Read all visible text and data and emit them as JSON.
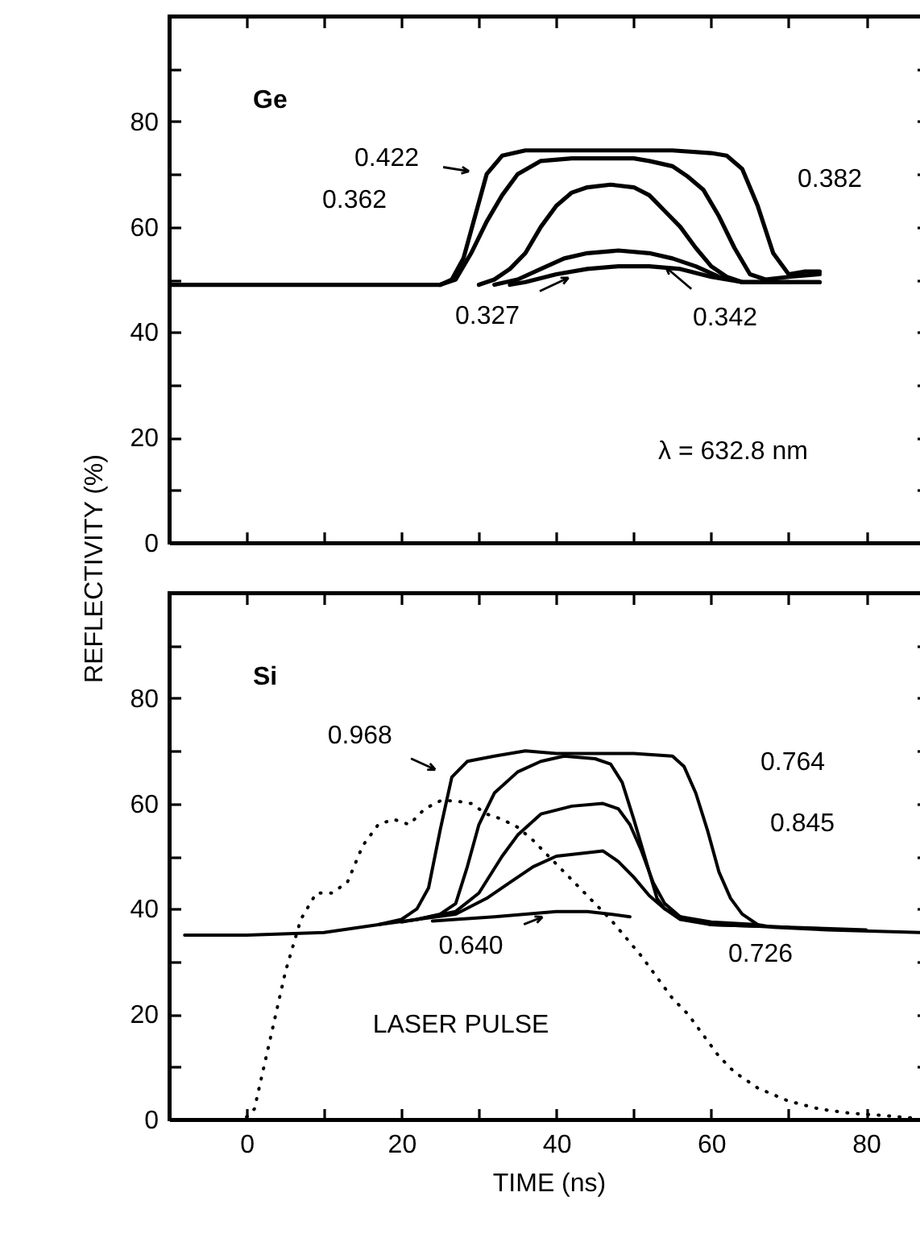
{
  "chart_data": [
    {
      "type": "line",
      "title": "Ge",
      "ylabel": "REFLECTIVITY (%)",
      "tick_labels": "y",
      "xlim": [
        -10,
        88
      ],
      "xticks": [
        0,
        {
          "value": 10,
          "label": null
        },
        20,
        {
          "value": 30,
          "label": null
        },
        40,
        {
          "value": 50,
          "label": null
        },
        60,
        {
          "value": 70,
          "label": null
        },
        80
      ],
      "ylim": [
        0,
        100
      ],
      "yticks": [
        0,
        {
          "value": 10,
          "label": null
        },
        20,
        {
          "value": 30,
          "label": null
        },
        40,
        {
          "value": 50,
          "label": null
        },
        60,
        {
          "value": 70,
          "label": null
        },
        80,
        {
          "value": 90,
          "label": null
        }
      ],
      "series": [
        {
          "color": "#000000",
          "x": [
            -10,
            20,
            25,
            26.5,
            28,
            29.5,
            31,
            33,
            36,
            45,
            55,
            60,
            62,
            64,
            66,
            68,
            70,
            72,
            74
          ],
          "values": [
            49,
            49,
            49,
            50,
            54,
            62,
            70,
            73.5,
            74.5,
            74.5,
            74.5,
            74,
            73.5,
            71,
            64,
            55,
            51,
            51.5,
            51.5
          ]
        },
        {
          "color": "#000000",
          "x": [
            25,
            27,
            29,
            31,
            33,
            35,
            38,
            42,
            50,
            52,
            55,
            57,
            59,
            61,
            63,
            65,
            67,
            70,
            74
          ],
          "values": [
            49,
            50,
            55,
            61,
            66,
            70,
            72.5,
            73,
            73,
            72.5,
            71.5,
            69.5,
            67,
            62,
            56,
            51,
            50,
            50.5,
            51
          ]
        },
        {
          "color": "#000000",
          "x": [
            30,
            32,
            34,
            36,
            38,
            40,
            42,
            44,
            47,
            50,
            52,
            54,
            56,
            58,
            60,
            62,
            64,
            70,
            74
          ],
          "values": [
            49,
            50,
            52,
            55,
            60,
            64,
            66.5,
            67.5,
            68,
            67.5,
            66,
            63,
            60,
            56,
            52.5,
            50.5,
            49.5,
            49.5,
            49.5
          ]
        },
        {
          "color": "#000000",
          "x": [
            32,
            35,
            38,
            41,
            44,
            48,
            52,
            55,
            58,
            61,
            64,
            70,
            74
          ],
          "values": [
            49,
            50,
            52,
            54,
            55,
            55.5,
            55,
            54,
            52.5,
            50.5,
            49.5,
            49.5,
            49.5
          ]
        },
        {
          "color": "#000000",
          "x": [
            34,
            36,
            40,
            44,
            48,
            52,
            56,
            60,
            64,
            70
          ],
          "values": [
            49,
            49.5,
            51,
            52,
            52.5,
            52.5,
            52,
            50.5,
            49.5,
            49.5
          ]
        }
      ],
      "annotations": [
        {
          "text": "0.422",
          "x": 31,
          "y": 70
        },
        "0.362",
        "0.382",
        {
          "text": "0.327",
          "x": 44,
          "y": 52
        },
        {
          "text": "0.342",
          "x": 52,
          "y": 55
        },
        "λ = 632.8 nm"
      ]
    },
    {
      "type": "line",
      "title": "Si",
      "xlabel": "TIME (ns)",
      "xlim": [
        -10,
        88
      ],
      "xticks": [
        0,
        {
          "value": 10,
          "label": null
        },
        20,
        {
          "value": 30,
          "label": null
        },
        40,
        {
          "value": 50,
          "label": null
        },
        60,
        {
          "value": 70,
          "label": null
        },
        80
      ],
      "ylim": [
        0,
        100
      ],
      "yticks": [
        0,
        {
          "value": 10,
          "label": null
        },
        20,
        {
          "value": 30,
          "label": null
        },
        40,
        {
          "value": 50,
          "label": null
        },
        60,
        {
          "value": 70,
          "label": null
        },
        80,
        {
          "value": 90,
          "label": null
        }
      ],
      "series": [
        {
          "color": "#000000",
          "x": [
            -8,
            0,
            10,
            17,
            20,
            22,
            23.5,
            25,
            26.5,
            28.5,
            32,
            36,
            40,
            45,
            50,
            55,
            56.5,
            58,
            59.5,
            61,
            62.5,
            64,
            66,
            68,
            75,
            87
          ],
          "values": [
            35,
            35,
            35.5,
            37,
            38,
            40,
            44,
            55,
            65,
            68,
            69,
            70,
            69.5,
            69.5,
            69.5,
            69,
            67,
            62,
            55,
            47,
            42,
            39,
            37,
            36.5,
            36,
            35.5
          ]
        },
        {
          "color": "#000000",
          "x": [
            17,
            22,
            25,
            27,
            28.5,
            30,
            32,
            35,
            38,
            41,
            45,
            47,
            48.5,
            50,
            51,
            52,
            53,
            54,
            56,
            60,
            70,
            80
          ],
          "values": [
            37,
            38,
            39,
            41,
            48,
            56,
            62,
            66,
            68,
            69,
            68.5,
            67.5,
            64,
            57,
            52,
            47,
            42,
            40,
            38,
            37,
            36.5,
            36
          ]
        },
        {
          "color": "#000000",
          "x": [
            20,
            22,
            27,
            30,
            33,
            35,
            38,
            42,
            46,
            48,
            49.5,
            51,
            52.5,
            54,
            56,
            60,
            70
          ],
          "values": [
            37.5,
            38,
            39.5,
            43,
            50,
            54,
            58,
            59.5,
            60,
            59,
            56,
            51,
            45,
            41,
            38.5,
            37,
            36.5
          ]
        },
        {
          "color": "#000000",
          "x": [
            22,
            27,
            31,
            34,
            37,
            40,
            43,
            46,
            48,
            50,
            52,
            54,
            56,
            60,
            66
          ],
          "values": [
            38,
            39,
            42,
            45,
            48,
            50,
            50.5,
            51,
            49,
            46,
            42.5,
            40,
            38.5,
            37.5,
            37
          ]
        },
        {
          "color": "#000000",
          "x": [
            24,
            27,
            32,
            36,
            40,
            44,
            47,
            49.5
          ],
          "values": [
            37.7,
            38,
            38.5,
            39,
            39.5,
            39.5,
            39,
            38.5
          ]
        },
        {
          "color": "#000000",
          "line_style": "dotted",
          "x": [
            0,
            1,
            3,
            5,
            7,
            9,
            11,
            13,
            15,
            17,
            19,
            21,
            23,
            25,
            27,
            29,
            31,
            33,
            35,
            37,
            39,
            41,
            43,
            45,
            47,
            49,
            51,
            53,
            55,
            57,
            59,
            61,
            63,
            66,
            70,
            74,
            78,
            82,
            86
          ],
          "values": [
            0.5,
            2,
            15,
            28,
            38,
            43,
            43,
            45,
            52,
            56,
            57,
            56,
            59,
            60.5,
            60.5,
            60,
            58,
            57,
            55.5,
            53,
            50,
            47,
            44,
            41,
            38,
            34.5,
            31,
            27,
            23,
            20,
            16,
            12,
            9,
            6,
            3.5,
            2,
            1.2,
            0.8,
            0.3
          ]
        }
      ],
      "annotations": [
        {
          "text": "0.968",
          "x": 26.5,
          "y": 65
        },
        "0.764",
        "0.845",
        "0.726",
        {
          "text": "0.640",
          "x": 40,
          "y": 39.5
        },
        "LASER PULSE"
      ]
    }
  ]
}
